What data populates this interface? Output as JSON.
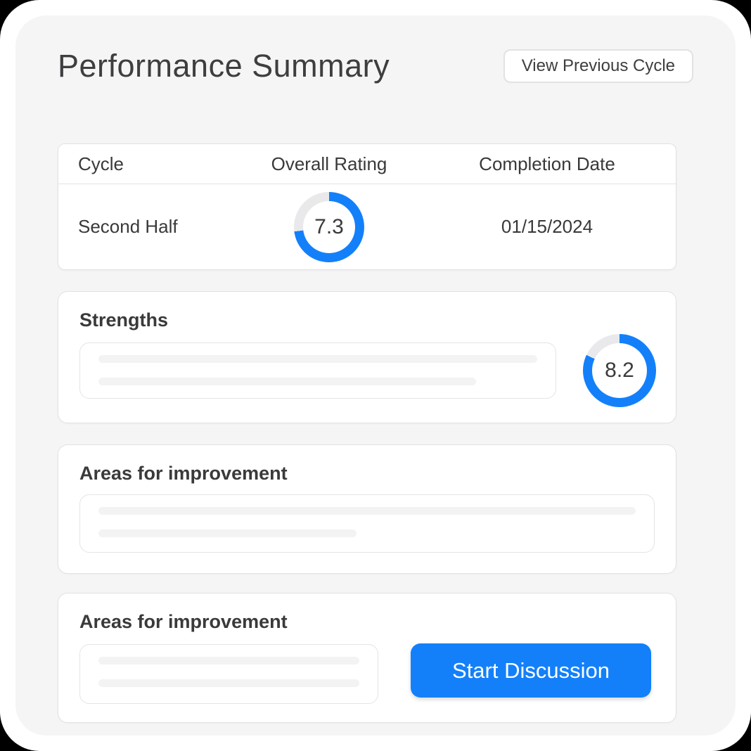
{
  "header": {
    "title": "Performance Summary",
    "view_previous_label": "View Previous Cycle"
  },
  "table": {
    "columns": [
      "Cycle",
      "Overall Rating",
      "Completion Date"
    ],
    "rows": [
      {
        "cycle": "Second Half",
        "overall_rating": 7.3,
        "completion_date": "01/15/2024"
      }
    ]
  },
  "cards": {
    "strengths": {
      "title": "Strengths",
      "rating": 8.2
    },
    "improvement_1": {
      "title": "Areas for improvement"
    },
    "improvement_2": {
      "title": "Areas for improvement",
      "action_label": "Start Discussion"
    }
  },
  "colors": {
    "accent_blue": "#1380fa",
    "ring_track": "#e9e9eb"
  }
}
